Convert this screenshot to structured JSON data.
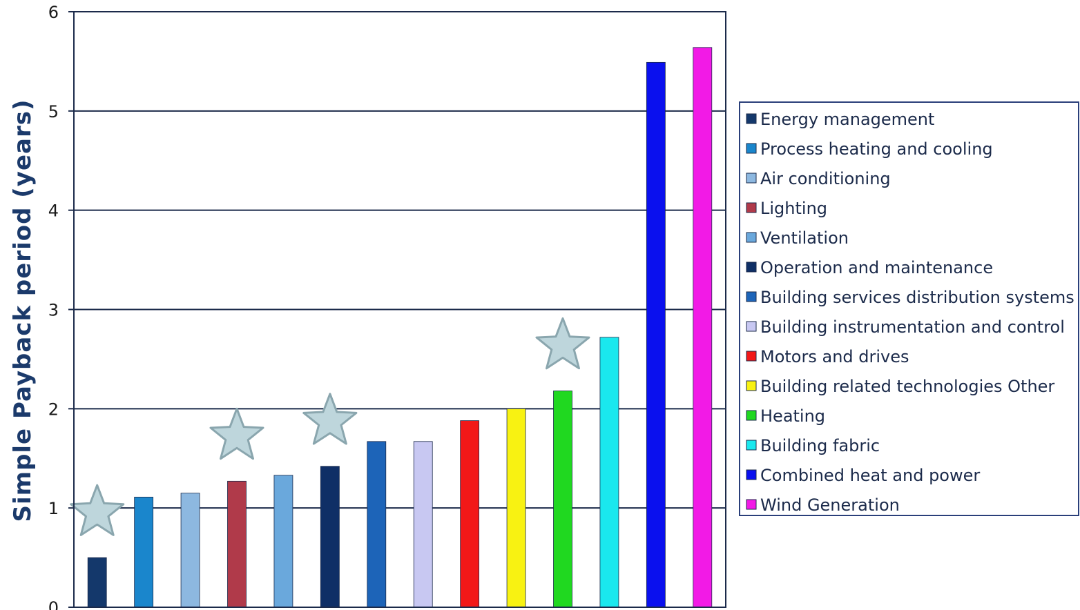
{
  "chart_data": {
    "type": "bar",
    "title": "",
    "xlabel": "",
    "ylabel": "Simple Payback period (years)",
    "ylim": [
      0,
      6
    ],
    "yticks": [
      0,
      1,
      2,
      3,
      4,
      5,
      6
    ],
    "grid": true,
    "legend_position": "right",
    "categories": [
      "Energy management",
      "Process heating and cooling",
      "Air conditioning",
      "Lighting",
      "Ventilation",
      "Operation and maintenance",
      "Building services distribution systems",
      "Building instrumentation and control",
      "Motors and drives",
      "Building related technologies Other",
      "Heating",
      "Building fabric",
      "Combined heat and power",
      "Wind Generation"
    ],
    "values": [
      0.5,
      1.11,
      1.15,
      1.27,
      1.33,
      1.42,
      1.67,
      1.67,
      1.88,
      2.0,
      2.18,
      2.72,
      5.49,
      5.64
    ],
    "colors": [
      "#14386b",
      "#1a86cc",
      "#8db8e0",
      "#b03a4a",
      "#6aa8dc",
      "#0f2f66",
      "#1d64b8",
      "#c8c8f2",
      "#f21818",
      "#f8f212",
      "#20d820",
      "#1ae8ee",
      "#0a10ee",
      "#f21ae6"
    ],
    "starred": [
      "Energy management",
      "Lighting",
      "Operation and maintenance",
      "Heating"
    ],
    "star_color": "#bed6dc",
    "star_outline": "#8aa6ae",
    "gridline_color": "#1b2a4a",
    "legend_border_color": "#2a3f7a",
    "ylabel_color": "#1b3a6b"
  }
}
